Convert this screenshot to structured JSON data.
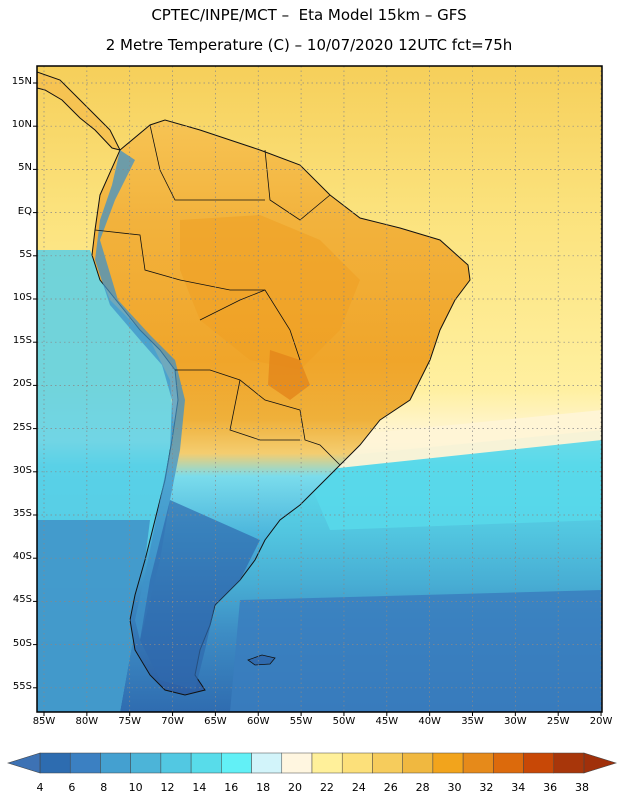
{
  "title": {
    "line1": "CPTEC/INPE/MCT –  Eta Model 15km – GFS",
    "line2": "2 Metre Temperature (C) – 10/07/2020 12UTC fct=75h"
  },
  "map": {
    "variable": "2 Metre Temperature",
    "units": "C",
    "lat_labels": [
      "15N",
      "10N",
      "5N",
      "EQ",
      "5S",
      "10S",
      "15S",
      "20S",
      "25S",
      "30S",
      "35S",
      "40S",
      "45S",
      "50S",
      "55S"
    ],
    "lon_labels": [
      "85W",
      "80W",
      "75W",
      "70W",
      "65W",
      "60W",
      "55W",
      "50W",
      "45W",
      "40W",
      "35W",
      "30W",
      "25W",
      "20W"
    ]
  },
  "colorbar": {
    "labels": [
      "4",
      "6",
      "8",
      "10",
      "12",
      "14",
      "16",
      "18",
      "20",
      "22",
      "24",
      "26",
      "28",
      "30",
      "32",
      "34",
      "36",
      "38"
    ],
    "colors": [
      "#2d6cb0",
      "#3b80c2",
      "#44a0d0",
      "#4cb4d8",
      "#52c8e2",
      "#58dcea",
      "#62f0f6",
      "#d2f4fa",
      "#fff6e0",
      "#fff09a",
      "#fce07a",
      "#f6cc5c",
      "#f0b840",
      "#f2a41c",
      "#e68a1a",
      "#dc6a0c",
      "#c84806",
      "#a8360a"
    ]
  }
}
